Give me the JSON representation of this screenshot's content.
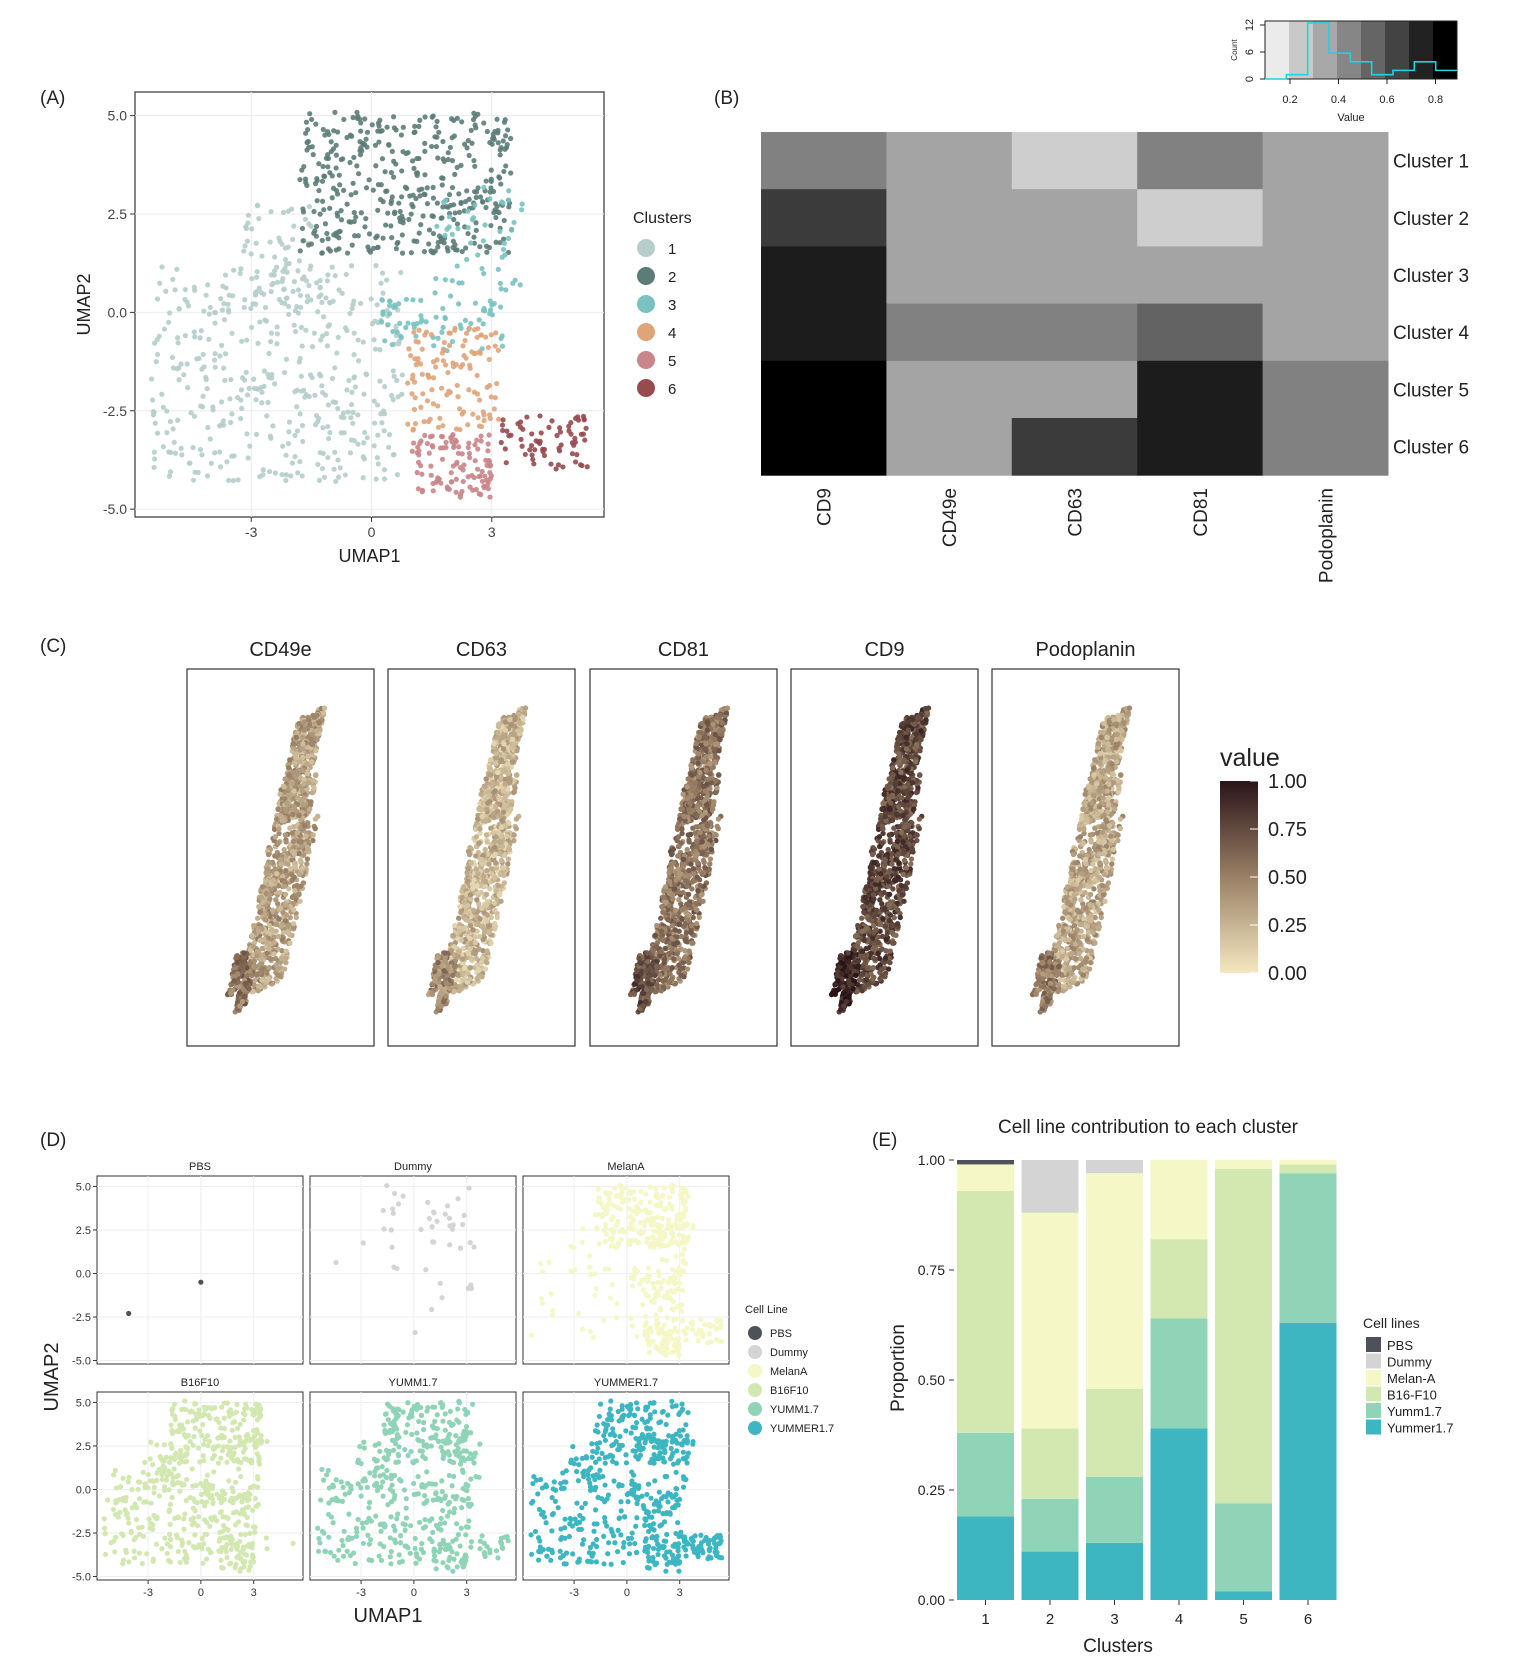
{
  "colors": {
    "clusters": [
      "#b5cdcb",
      "#5c7c78",
      "#79c2c0",
      "#e0a47a",
      "#c9858a",
      "#974a50"
    ],
    "gradient_low": "#f4e8c0",
    "gradient_mid": "#9a8066",
    "gradient_high": "#2a1418",
    "cell_lines": [
      "#4d5258",
      "#d4d4d4",
      "#f5f7c6",
      "#d2e8b0",
      "#8fd4b6",
      "#3db6c2"
    ],
    "hist_line": "#1fd3e0"
  },
  "chart_data": [
    {
      "panel": "(A)",
      "type": "scatter",
      "xlabel": "UMAP1",
      "ylabel": "UMAP2",
      "xlim": [
        -5.9,
        5.8
      ],
      "ylim": [
        -5.2,
        5.6
      ],
      "xticks": [
        -3,
        0,
        3
      ],
      "xtick_labels": [
        "-3",
        "0",
        "3"
      ],
      "yticks": [
        5.0,
        2.5,
        0.0,
        -2.5,
        -5.0
      ],
      "ytick_labels": [
        "5.0",
        "2.5",
        "0.0",
        "-2.5",
        "-5.0"
      ],
      "legend_title": "Clusters",
      "legend": [
        "1",
        "2",
        "3",
        "4",
        "5",
        "6"
      ],
      "regions": [
        {
          "cluster": "1",
          "x": [
            -5.5,
            0.8
          ],
          "y": [
            -4.3,
            1.2
          ],
          "n": 430
        },
        {
          "cluster": "1",
          "x": [
            -3.2,
            -1.5
          ],
          "y": [
            0.0,
            2.8
          ],
          "n": 60
        },
        {
          "cluster": "2",
          "x": [
            -1.8,
            3.5
          ],
          "y": [
            1.5,
            5.1
          ],
          "n": 420
        },
        {
          "cluster": "3",
          "x": [
            0.2,
            3.3
          ],
          "y": [
            -1.0,
            0.5
          ],
          "n": 70
        },
        {
          "cluster": "3",
          "x": [
            1.6,
            3.8
          ],
          "y": [
            0.5,
            3.2
          ],
          "n": 50
        },
        {
          "cluster": "4",
          "x": [
            0.9,
            3.2
          ],
          "y": [
            -3.0,
            -0.4
          ],
          "n": 120
        },
        {
          "cluster": "5",
          "x": [
            1.0,
            3.0
          ],
          "y": [
            -4.7,
            -3.1
          ],
          "n": 110
        },
        {
          "cluster": "6",
          "x": [
            3.2,
            5.4
          ],
          "y": [
            -4.0,
            -2.6
          ],
          "n": 70
        }
      ]
    },
    {
      "panel": "(B)",
      "type": "heatmap",
      "columns": [
        "CD9",
        "CD49e",
        "CD63",
        "CD81",
        "Podoplanin"
      ],
      "rows": [
        "Cluster 1",
        "Cluster 2",
        "Cluster 3",
        "Cluster 4",
        "Cluster 5",
        "Cluster 6"
      ],
      "values": [
        [
          0.45,
          0.3,
          0.12,
          0.45,
          0.3
        ],
        [
          0.75,
          0.3,
          0.3,
          0.12,
          0.3
        ],
        [
          0.88,
          0.3,
          0.3,
          0.3,
          0.3
        ],
        [
          0.88,
          0.45,
          0.45,
          0.58,
          0.3
        ],
        [
          1.0,
          0.3,
          0.3,
          0.88,
          0.45
        ],
        [
          1.0,
          0.3,
          0.75,
          0.88,
          0.45
        ]
      ],
      "key": {
        "xlabel": "Value",
        "ylabel": "Count",
        "xticks": [
          "0.2",
          "0.4",
          "0.6",
          "0.8"
        ],
        "yticks": [
          "0",
          "6",
          "12"
        ],
        "hist_counts": [
          0,
          1,
          13,
          6,
          4,
          1,
          2,
          4,
          2
        ]
      }
    },
    {
      "panel": "(C)",
      "type": "scatter",
      "facets": [
        "CD49e",
        "CD63",
        "CD81",
        "CD9",
        "Podoplanin"
      ],
      "facet_levels": [
        0.35,
        0.25,
        0.55,
        0.75,
        0.32
      ],
      "legend_title": "value",
      "legend_ticks": [
        "1.00",
        "0.75",
        "0.50",
        "0.25",
        "0.00"
      ]
    },
    {
      "panel": "(D)",
      "type": "scatter",
      "xlabel": "UMAP1",
      "ylabel": "UMAP2",
      "facets": [
        "PBS",
        "Dummy",
        "MelanA",
        "B16F10",
        "YUMM1.7",
        "YUMMER1.7"
      ],
      "xticks": [
        "-3",
        "0",
        "3"
      ],
      "yticks": [
        "5.0",
        "2.5",
        "0.0",
        "-2.5",
        "-5.0"
      ],
      "legend_title": "Cell Line",
      "legend": [
        "PBS",
        "Dummy",
        "MelanA",
        "B16F10",
        "YUMM1.7",
        "YUMMER1.7"
      ],
      "pbs_points": [
        [
          -4.1,
          -2.3
        ],
        [
          0.0,
          -0.5
        ]
      ]
    },
    {
      "panel": "(E)",
      "type": "bar",
      "stacked": true,
      "title": "Cell line contribution to each cluster",
      "xlabel": "Clusters",
      "ylabel": "Proportion",
      "categories": [
        "1",
        "2",
        "3",
        "4",
        "5",
        "6"
      ],
      "ylim": [
        0,
        1
      ],
      "yticks": [
        "0.00",
        "0.25",
        "0.50",
        "0.75",
        "1.00"
      ],
      "legend_title": "Cell lines",
      "series": [
        {
          "name": "Yummer1.7",
          "values": [
            0.19,
            0.11,
            0.13,
            0.39,
            0.02,
            0.63
          ]
        },
        {
          "name": "Yumm1.7",
          "values": [
            0.19,
            0.12,
            0.15,
            0.25,
            0.2,
            0.34
          ]
        },
        {
          "name": "B16-F10",
          "values": [
            0.55,
            0.16,
            0.2,
            0.18,
            0.76,
            0.02
          ]
        },
        {
          "name": "Melan-A",
          "values": [
            0.06,
            0.49,
            0.49,
            0.18,
            0.02,
            0.01
          ]
        },
        {
          "name": "Dummy",
          "values": [
            0.0,
            0.12,
            0.03,
            0.0,
            0.0,
            0.0
          ]
        },
        {
          "name": "PBS",
          "values": [
            0.01,
            0.0,
            0.0,
            0.0,
            0.0,
            0.0
          ]
        }
      ],
      "legend_order": [
        "PBS",
        "Dummy",
        "Melan-A",
        "B16-F10",
        "Yumm1.7",
        "Yummer1.7"
      ]
    }
  ],
  "panel_labels": [
    "(A)",
    "(B)",
    "(C)",
    "(D)",
    "(E)"
  ]
}
